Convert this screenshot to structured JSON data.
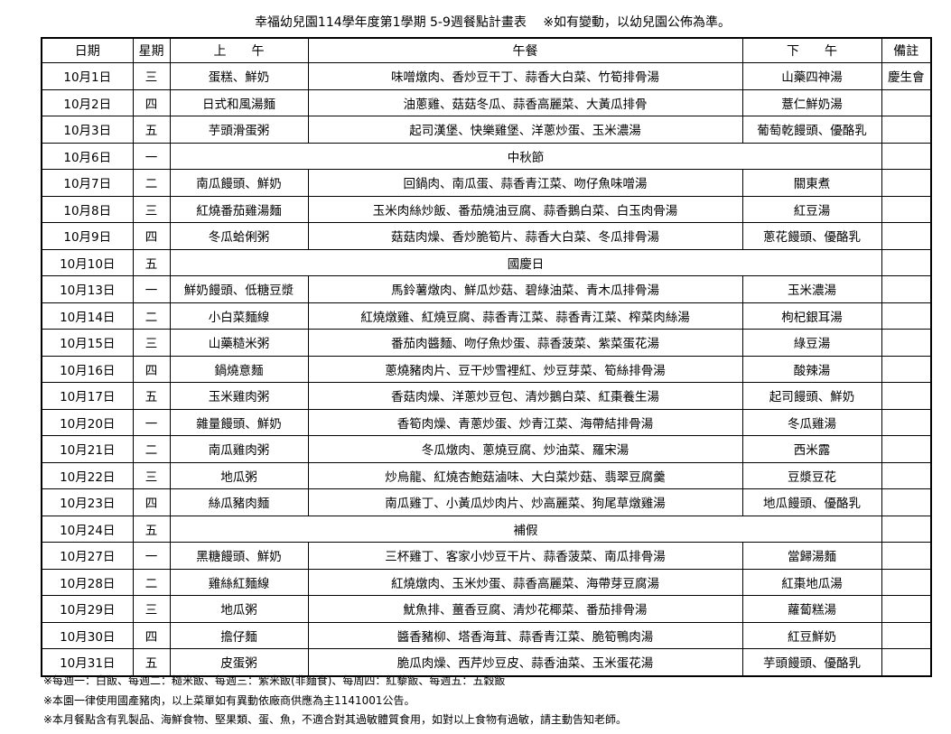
{
  "title": "幸福幼兒園114學年度第1學期 5-9週餐點計畫表　 ※如有變動，以幼兒園公佈為準。",
  "headers": [
    "日期",
    "星期",
    "上　　午",
    "午餐",
    "下　　午",
    "備註"
  ],
  "rows": [
    {
      "date": "10月1日",
      "day": "三",
      "am": "蛋糕、鮮奶",
      "lunch": "味噌燉肉、香炒豆干丁、蒜香大白菜、竹筍排骨湯",
      "pm": "山藥四神湯",
      "note": "慶生會"
    },
    {
      "date": "10月2日",
      "day": "四",
      "am": "日式和風湯麵",
      "lunch": "油蔥雞、菇菇冬瓜、蒜香高麗菜、大黃瓜排骨",
      "pm": "薏仁鮮奶湯",
      "note": ""
    },
    {
      "date": "10月3日",
      "day": "五",
      "am": "芋頭滑蛋粥",
      "lunch": "起司漢堡、快樂雞堡、洋蔥炒蛋、玉米濃湯",
      "pm": "葡萄乾饅頭、優酪乳",
      "note": ""
    },
    {
      "date": "10月6日",
      "day": "一",
      "holiday": "中秋節",
      "note": ""
    },
    {
      "date": "10月7日",
      "day": "二",
      "am": "南瓜饅頭、鮮奶",
      "lunch": "回鍋肉、南瓜蛋、蒜香青江菜、吻仔魚味噌湯",
      "pm": "關東煮",
      "note": ""
    },
    {
      "date": "10月8日",
      "day": "三",
      "am": "紅燒番茄雞湯麵",
      "lunch": "玉米肉絲炒飯、番茄燒油豆腐、蒜香鵝白菜、白玉肉骨湯",
      "pm": "紅豆湯",
      "note": ""
    },
    {
      "date": "10月9日",
      "day": "四",
      "am": "冬瓜蛤俐粥",
      "lunch": "菇菇肉燥、香炒脆筍片、蒜香大白菜、冬瓜排骨湯",
      "pm": "蔥花饅頭、優酪乳",
      "note": ""
    },
    {
      "date": "10月10日",
      "day": "五",
      "holiday": "國慶日",
      "note": ""
    },
    {
      "date": "10月13日",
      "day": "一",
      "am": "鮮奶饅頭、低糖豆漿",
      "lunch": "馬鈴薯燉肉、鮮瓜炒菇、碧綠油菜、青木瓜排骨湯",
      "pm": "玉米濃湯",
      "note": ""
    },
    {
      "date": "10月14日",
      "day": "二",
      "am": "小白菜麵線",
      "lunch": "紅燒燉雞、紅燒豆腐、蒜香青江菜、蒜香青江菜、榨菜肉絲湯",
      "pm": "枸杞銀耳湯",
      "note": ""
    },
    {
      "date": "10月15日",
      "day": "三",
      "am": "山藥糙米粥",
      "lunch": "番茄肉醬麵、吻仔魚炒蛋、蒜香菠菜、紫菜蛋花湯",
      "pm": "綠豆湯",
      "note": ""
    },
    {
      "date": "10月16日",
      "day": "四",
      "am": "鍋燒意麵",
      "lunch": "蔥燒豬肉片、豆干炒雪裡紅、炒豆芽菜、筍絲排骨湯",
      "pm": "酸辣湯",
      "note": ""
    },
    {
      "date": "10月17日",
      "day": "五",
      "am": "玉米雞肉粥",
      "lunch": "香菇肉燥、洋蔥炒豆包、清炒鵝白菜、紅棗養生湯",
      "pm": "起司饅頭、鮮奶",
      "note": ""
    },
    {
      "date": "10月20日",
      "day": "一",
      "am": "雜量饅頭、鮮奶",
      "lunch": "香筍肉燥、青蔥炒蛋、炒青江菜、海帶結排骨湯",
      "pm": "冬瓜雞湯",
      "note": ""
    },
    {
      "date": "10月21日",
      "day": "二",
      "am": "南瓜雞肉粥",
      "lunch": "冬瓜燉肉、蔥燒豆腐、炒油菜、羅宋湯",
      "pm": "西米露",
      "note": ""
    },
    {
      "date": "10月22日",
      "day": "三",
      "am": "地瓜粥",
      "lunch": "炒烏龍、紅燒杏鮑菇滷味、大白菜炒菇、翡翠豆腐羹",
      "pm": "豆漿豆花",
      "note": ""
    },
    {
      "date": "10月23日",
      "day": "四",
      "am": "絲瓜豬肉麵",
      "lunch": "南瓜雞丁、小黃瓜炒肉片、炒高麗菜、狗尾草燉雞湯",
      "pm": "地瓜饅頭、優酪乳",
      "note": ""
    },
    {
      "date": "10月24日",
      "day": "五",
      "holiday": "補假",
      "note": ""
    },
    {
      "date": "10月27日",
      "day": "一",
      "am": "黑糖饅頭、鮮奶",
      "lunch": "三杯雞丁、客家小炒豆干片、蒜香菠菜、南瓜排骨湯",
      "pm": "當歸湯麵",
      "note": ""
    },
    {
      "date": "10月28日",
      "day": "二",
      "am": "雞絲紅麵線",
      "lunch": "紅燒燉肉、玉米炒蛋、蒜香高麗菜、海帶芽豆腐湯",
      "pm": "紅棗地瓜湯",
      "note": ""
    },
    {
      "date": "10月29日",
      "day": "三",
      "am": "地瓜粥",
      "lunch": "魷魚排、薑香豆腐、清炒花椰菜、番茄排骨湯",
      "pm": "蘿蔔糕湯",
      "note": ""
    },
    {
      "date": "10月30日",
      "day": "四",
      "am": "擔仔麵",
      "lunch": "醬香豬柳、塔香海茸、蒜香青江菜、脆筍鴨肉湯",
      "pm": "紅豆鮮奶",
      "note": ""
    },
    {
      "date": "10月31日",
      "day": "五",
      "am": "皮蛋粥",
      "lunch": "脆瓜肉燥、西芹炒豆皮、蒜香油菜、玉米蛋花湯",
      "pm": "芋頭饅頭、優酪乳",
      "note": ""
    }
  ],
  "notes": [
    "※每週一：白飯、每週二：糙米飯、每週三：紫米飯(非麵食)、每周四：紅藜飯、每週五：五穀飯",
    "※本園一律使用國產豬肉，以上菜單如有異動依廠商供應為主1141001公告。",
    "※本月餐點含有乳製品、海鮮食物、堅果類、蛋、魚，不適合對其過敏體質食用，如對以上食物有過敏，請主動告知老師。"
  ]
}
